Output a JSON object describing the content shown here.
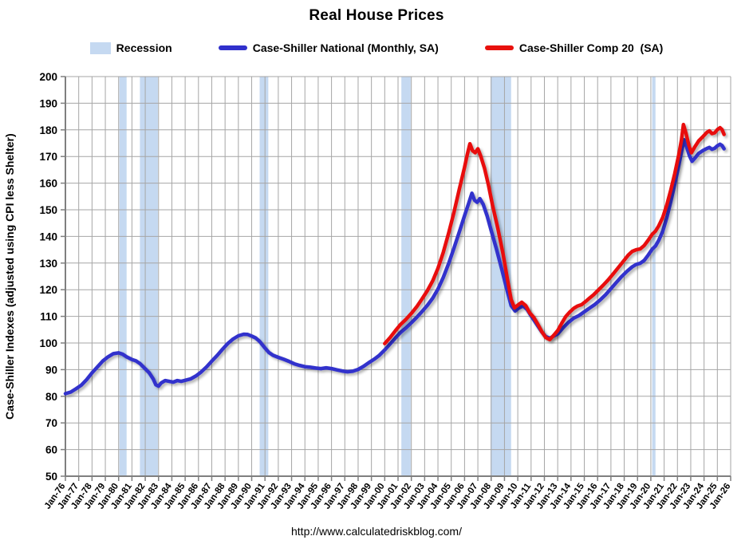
{
  "title": "Real House Prices",
  "legend": {
    "items": [
      {
        "label": "Recession",
        "swatch": "recession-box"
      },
      {
        "label": "Case-Shiller National (Monthly, SA)",
        "swatch": "blue-line"
      },
      {
        "label": "Case-Shiller Comp 20  (SA)",
        "swatch": "red-line"
      }
    ]
  },
  "y_axis": {
    "title": "Case-Shiller Indexes (adjusted using CPI less Shelter)"
  },
  "footer": {
    "url": "http://www.calculatedriskblog.com/"
  },
  "colors": {
    "national_line": "#3030CC",
    "comp20_line": "#E8110D",
    "recession_band": "#C5D9F1",
    "gridline": "#A6A6A6",
    "axis": "#7F7F7F",
    "text": "#000000",
    "background": "#FFFFFF"
  },
  "chart_data": {
    "type": "line",
    "title": "Real House Prices",
    "ylabel": "Case-Shiller Indexes (adjusted using CPI less Shelter)",
    "x_min": 1976,
    "x_max": 2026,
    "y_min": 50,
    "y_max": 200,
    "y_step": 10,
    "grid": true,
    "legend_position": "top",
    "y_ticks": [
      50,
      60,
      70,
      80,
      90,
      100,
      110,
      120,
      130,
      140,
      150,
      160,
      170,
      180,
      190,
      200
    ],
    "x_tick_labels": [
      "Jan-76",
      "Jan-77",
      "Jan-78",
      "Jan-79",
      "Jan-80",
      "Jan-81",
      "Jan-82",
      "Jan-83",
      "Jan-84",
      "Jan-85",
      "Jan-86",
      "Jan-87",
      "Jan-88",
      "Jan-89",
      "Jan-90",
      "Jan-91",
      "Jan-92",
      "Jan-93",
      "Jan-94",
      "Jan-95",
      "Jan-96",
      "Jan-97",
      "Jan-98",
      "Jan-99",
      "Jan-00",
      "Jan-01",
      "Jan-02",
      "Jan-03",
      "Jan-04",
      "Jan-05",
      "Jan-06",
      "Jan-07",
      "Jan-08",
      "Jan-09",
      "Jan-10",
      "Jan-11",
      "Jan-12",
      "Jan-13",
      "Jan-14",
      "Jan-15",
      "Jan-16",
      "Jan-17",
      "Jan-18",
      "Jan-19",
      "Jan-20",
      "Jan-21",
      "Jan-22",
      "Jan-23",
      "Jan-24",
      "Jan-25",
      "Jan-26"
    ],
    "recessions": [
      [
        1980.05,
        1980.6
      ],
      [
        1981.6,
        1982.95
      ],
      [
        1990.6,
        1991.25
      ],
      [
        2001.25,
        2001.95
      ],
      [
        2007.95,
        2009.5
      ],
      [
        2020.1,
        2020.35
      ]
    ],
    "series": [
      {
        "name": "Case-Shiller National (Monthly, SA)",
        "color_key": "national_line",
        "points": [
          [
            1976.0,
            81
          ],
          [
            1976.4,
            81.6
          ],
          [
            1976.8,
            82.8
          ],
          [
            1977.2,
            84.2
          ],
          [
            1977.6,
            86.3
          ],
          [
            1978.0,
            88.8
          ],
          [
            1978.4,
            91
          ],
          [
            1978.8,
            93.2
          ],
          [
            1979.2,
            94.8
          ],
          [
            1979.6,
            96
          ],
          [
            1980.0,
            96.3
          ],
          [
            1980.3,
            95.8
          ],
          [
            1980.6,
            94.8
          ],
          [
            1981.0,
            93.8
          ],
          [
            1981.3,
            93.3
          ],
          [
            1981.6,
            92.3
          ],
          [
            1982.0,
            90.3
          ],
          [
            1982.3,
            88.8
          ],
          [
            1982.6,
            86.5
          ],
          [
            1982.8,
            84.3
          ],
          [
            1983.0,
            83.8
          ],
          [
            1983.2,
            85
          ],
          [
            1983.5,
            85.9
          ],
          [
            1983.8,
            85.6
          ],
          [
            1984.1,
            85.3
          ],
          [
            1984.4,
            85.9
          ],
          [
            1984.7,
            85.6
          ],
          [
            1985.0,
            86
          ],
          [
            1985.4,
            86.5
          ],
          [
            1985.8,
            87.6
          ],
          [
            1986.2,
            89.1
          ],
          [
            1986.6,
            91
          ],
          [
            1987.0,
            93.2
          ],
          [
            1987.4,
            95.3
          ],
          [
            1987.8,
            97.6
          ],
          [
            1988.2,
            99.8
          ],
          [
            1988.6,
            101.5
          ],
          [
            1989.0,
            102.7
          ],
          [
            1989.4,
            103.3
          ],
          [
            1989.7,
            103.2
          ],
          [
            1990.0,
            102.6
          ],
          [
            1990.3,
            101.9
          ],
          [
            1990.6,
            100.6
          ],
          [
            1991.0,
            98.1
          ],
          [
            1991.3,
            96.4
          ],
          [
            1991.6,
            95.4
          ],
          [
            1992.0,
            94.6
          ],
          [
            1992.4,
            93.9
          ],
          [
            1992.8,
            93.1
          ],
          [
            1993.2,
            92.2
          ],
          [
            1993.6,
            91.6
          ],
          [
            1994.0,
            91.1
          ],
          [
            1994.4,
            90.9
          ],
          [
            1994.8,
            90.6
          ],
          [
            1995.2,
            90.4
          ],
          [
            1995.6,
            90.7
          ],
          [
            1996.0,
            90.4
          ],
          [
            1996.4,
            89.9
          ],
          [
            1996.8,
            89.5
          ],
          [
            1997.2,
            89.2
          ],
          [
            1997.6,
            89.4
          ],
          [
            1998.0,
            90.1
          ],
          [
            1998.4,
            91.2
          ],
          [
            1998.8,
            92.6
          ],
          [
            1999.2,
            93.9
          ],
          [
            1999.6,
            95.4
          ],
          [
            2000.0,
            97.4
          ],
          [
            2000.4,
            99.6
          ],
          [
            2000.8,
            101.9
          ],
          [
            2001.2,
            104
          ],
          [
            2001.6,
            105.7
          ],
          [
            2002.0,
            107.6
          ],
          [
            2002.4,
            109.6
          ],
          [
            2002.8,
            111.8
          ],
          [
            2003.2,
            114.1
          ],
          [
            2003.6,
            116.8
          ],
          [
            2004.0,
            120.2
          ],
          [
            2004.4,
            124.6
          ],
          [
            2004.8,
            129.8
          ],
          [
            2005.2,
            135.6
          ],
          [
            2005.6,
            141.6
          ],
          [
            2006.0,
            147.8
          ],
          [
            2006.3,
            152.3
          ],
          [
            2006.55,
            156.2
          ],
          [
            2006.75,
            153.6
          ],
          [
            2006.95,
            152.8
          ],
          [
            2007.15,
            154.2
          ],
          [
            2007.4,
            152
          ],
          [
            2007.7,
            147.6
          ],
          [
            2008.0,
            142.2
          ],
          [
            2008.4,
            135.2
          ],
          [
            2008.8,
            127.6
          ],
          [
            2009.2,
            119.6
          ],
          [
            2009.5,
            114
          ],
          [
            2009.8,
            112
          ],
          [
            2010.1,
            113.2
          ],
          [
            2010.4,
            113.9
          ],
          [
            2010.7,
            112.6
          ],
          [
            2011.0,
            110.2
          ],
          [
            2011.4,
            107.2
          ],
          [
            2011.8,
            104.2
          ],
          [
            2012.1,
            102.4
          ],
          [
            2012.4,
            101.8
          ],
          [
            2012.7,
            102.6
          ],
          [
            2013.0,
            103.4
          ],
          [
            2013.4,
            105.7
          ],
          [
            2013.8,
            107.7
          ],
          [
            2014.2,
            109.3
          ],
          [
            2014.6,
            110.3
          ],
          [
            2015.0,
            111.7
          ],
          [
            2015.4,
            113.1
          ],
          [
            2015.8,
            114.5
          ],
          [
            2016.2,
            116.2
          ],
          [
            2016.6,
            118.1
          ],
          [
            2017.0,
            120.4
          ],
          [
            2017.4,
            122.7
          ],
          [
            2017.8,
            124.9
          ],
          [
            2018.2,
            126.9
          ],
          [
            2018.6,
            128.6
          ],
          [
            2018.9,
            129.5
          ],
          [
            2019.2,
            129.9
          ],
          [
            2019.5,
            131
          ],
          [
            2019.8,
            133
          ],
          [
            2020.1,
            135.2
          ],
          [
            2020.35,
            136.4
          ],
          [
            2020.6,
            138.6
          ],
          [
            2020.9,
            142
          ],
          [
            2021.2,
            147
          ],
          [
            2021.5,
            153
          ],
          [
            2021.8,
            159.6
          ],
          [
            2022.1,
            166.6
          ],
          [
            2022.35,
            172.8
          ],
          [
            2022.5,
            176.3
          ],
          [
            2022.7,
            173.4
          ],
          [
            2022.9,
            170.3
          ],
          [
            2023.1,
            168.2
          ],
          [
            2023.35,
            169.6
          ],
          [
            2023.6,
            171.2
          ],
          [
            2023.9,
            172.2
          ],
          [
            2024.2,
            173
          ],
          [
            2024.4,
            173.4
          ],
          [
            2024.6,
            172.7
          ],
          [
            2024.8,
            173.1
          ],
          [
            2025.0,
            174
          ],
          [
            2025.2,
            174.6
          ],
          [
            2025.35,
            174.1
          ],
          [
            2025.5,
            172.9
          ]
        ]
      },
      {
        "name": "Case-Shiller Comp 20  (SA)",
        "color_key": "comp20_line",
        "points": [
          [
            2000.0,
            99.8
          ],
          [
            2000.4,
            102
          ],
          [
            2000.8,
            104.6
          ],
          [
            2001.2,
            107
          ],
          [
            2001.6,
            108.9
          ],
          [
            2002.0,
            111.1
          ],
          [
            2002.4,
            113.6
          ],
          [
            2002.8,
            116.5
          ],
          [
            2003.2,
            119.6
          ],
          [
            2003.6,
            123.3
          ],
          [
            2004.0,
            128
          ],
          [
            2004.4,
            134
          ],
          [
            2004.8,
            141.2
          ],
          [
            2005.2,
            149
          ],
          [
            2005.6,
            157.6
          ],
          [
            2006.0,
            166
          ],
          [
            2006.2,
            170.6
          ],
          [
            2006.4,
            174.8
          ],
          [
            2006.6,
            172.2
          ],
          [
            2006.8,
            171.4
          ],
          [
            2007.0,
            172.9
          ],
          [
            2007.2,
            170.4
          ],
          [
            2007.5,
            165.6
          ],
          [
            2007.8,
            159.2
          ],
          [
            2008.1,
            151.8
          ],
          [
            2008.5,
            143
          ],
          [
            2008.9,
            133.2
          ],
          [
            2009.2,
            124.5
          ],
          [
            2009.5,
            116.3
          ],
          [
            2009.75,
            113.2
          ],
          [
            2010.0,
            114.2
          ],
          [
            2010.3,
            115.3
          ],
          [
            2010.6,
            114
          ],
          [
            2010.9,
            111.3
          ],
          [
            2011.2,
            109.6
          ],
          [
            2011.5,
            107.1
          ],
          [
            2011.8,
            104.3
          ],
          [
            2012.1,
            102.1
          ],
          [
            2012.4,
            101.3
          ],
          [
            2012.7,
            102.9
          ],
          [
            2013.0,
            104.7
          ],
          [
            2013.3,
            107.4
          ],
          [
            2013.6,
            109.9
          ],
          [
            2013.9,
            111.6
          ],
          [
            2014.2,
            113
          ],
          [
            2014.5,
            113.9
          ],
          [
            2014.8,
            114.4
          ],
          [
            2015.1,
            115.6
          ],
          [
            2015.4,
            116.9
          ],
          [
            2015.7,
            118.1
          ],
          [
            2016.0,
            119.6
          ],
          [
            2016.4,
            121.6
          ],
          [
            2016.8,
            123.7
          ],
          [
            2017.2,
            126.1
          ],
          [
            2017.6,
            128.6
          ],
          [
            2018.0,
            131.1
          ],
          [
            2018.3,
            133
          ],
          [
            2018.6,
            134.4
          ],
          [
            2018.9,
            135
          ],
          [
            2019.2,
            135.3
          ],
          [
            2019.5,
            136.6
          ],
          [
            2019.8,
            138.6
          ],
          [
            2020.1,
            140.8
          ],
          [
            2020.35,
            142
          ],
          [
            2020.6,
            144
          ],
          [
            2020.9,
            147.2
          ],
          [
            2021.2,
            151.8
          ],
          [
            2021.5,
            157.4
          ],
          [
            2021.8,
            163.6
          ],
          [
            2022.1,
            170.6
          ],
          [
            2022.3,
            176.2
          ],
          [
            2022.45,
            182
          ],
          [
            2022.65,
            178.6
          ],
          [
            2022.85,
            174.3
          ],
          [
            2023.05,
            171.4
          ],
          [
            2023.3,
            173.6
          ],
          [
            2023.6,
            175.9
          ],
          [
            2023.9,
            177.4
          ],
          [
            2024.2,
            179
          ],
          [
            2024.4,
            179.6
          ],
          [
            2024.6,
            178.6
          ],
          [
            2024.8,
            178.9
          ],
          [
            2025.0,
            180.1
          ],
          [
            2025.2,
            180.8
          ],
          [
            2025.35,
            180.1
          ],
          [
            2025.5,
            178.3
          ]
        ]
      }
    ]
  }
}
